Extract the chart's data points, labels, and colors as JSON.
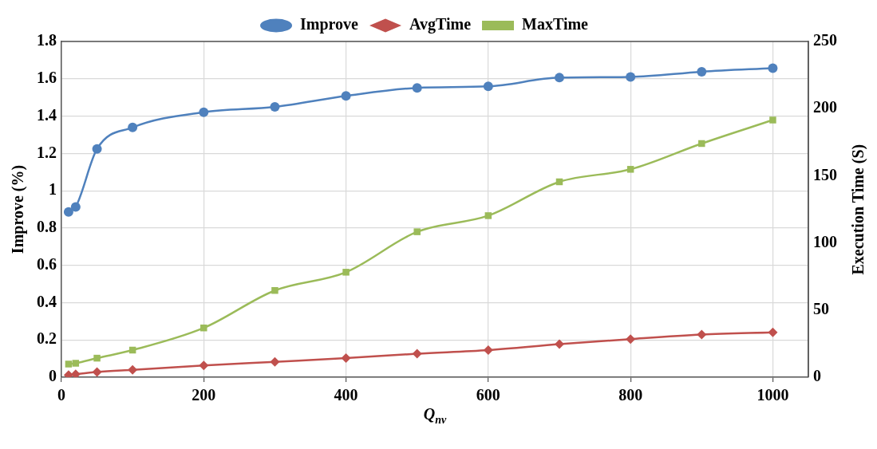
{
  "chart_data": {
    "type": "line",
    "xlabel": "Q$_{nv}$",
    "ylabel": "Improve (%)",
    "y2label": "Execution Time (S)",
    "x": [
      10,
      20,
      50,
      100,
      200,
      300,
      400,
      500,
      600,
      700,
      800,
      900,
      1000
    ],
    "xlim": [
      0,
      1050
    ],
    "xticks": [
      0,
      200,
      400,
      600,
      800,
      1000
    ],
    "ylim": [
      0,
      1.8
    ],
    "yticks": [
      0,
      0.2,
      0.4,
      0.6,
      0.8,
      1,
      1.2,
      1.4,
      1.6,
      1.8
    ],
    "y2lim": [
      0,
      250
    ],
    "y2ticks": [
      0,
      50,
      100,
      150,
      200,
      250
    ],
    "grid": true,
    "legend": "top",
    "series": [
      {
        "name": "Improve",
        "color": "#4f81bd",
        "marker": "circle",
        "values": [
          0.886,
          0.913,
          1.224,
          1.339,
          1.421,
          1.449,
          1.508,
          1.551,
          1.559,
          1.606,
          1.61,
          1.638,
          1.657
        ]
      },
      {
        "name": "AvgTime",
        "color": "#c0504d",
        "marker": "diamond",
        "axis": "y2",
        "values": [
          1.6,
          2.2,
          3.8,
          5.5,
          8.8,
          11.5,
          14.2,
          17.5,
          20.2,
          24.6,
          28.4,
          31.7,
          33.4
        ]
      },
      {
        "name": "MaxTime",
        "color": "#9bbb59",
        "marker": "square",
        "axis": "y2",
        "values": [
          9.8,
          10.4,
          14.2,
          20.2,
          36.7,
          64.6,
          78.2,
          108.3,
          120.3,
          145.5,
          154.8,
          174,
          191.5
        ]
      }
    ]
  }
}
